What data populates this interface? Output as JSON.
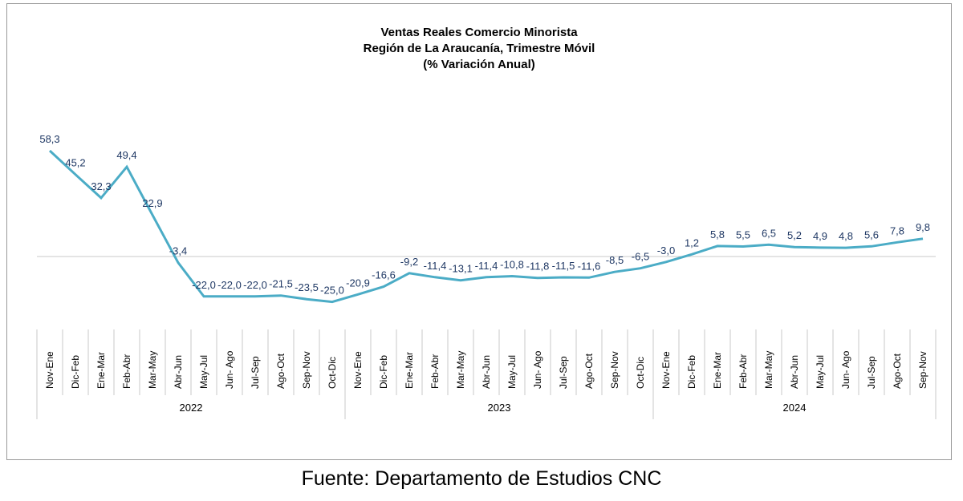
{
  "chart_data": {
    "type": "line",
    "title": [
      "Ventas Reales Comercio Minorista",
      "Región de La Araucanía, Trimestre Móvil",
      "(% Variación Anual)"
    ],
    "categories": [
      "Nov-Ene",
      "Dic-Feb",
      "Ene-Mar",
      "Feb-Abr",
      "Mar-May",
      "Abr-Jun",
      "May-Jul",
      "Jun- Ago",
      "Jul-Sep",
      "Ago-Oct",
      "Sep-Nov",
      "Oct-Dic",
      "Nov-Ene",
      "Dic-Feb",
      "Ene-Mar",
      "Feb-Abr",
      "Mar-May",
      "Abr-Jun",
      "May-Jul",
      "Jun- Ago",
      "Jul-Sep",
      "Ago-Oct",
      "Sep-Nov",
      "Oct-Dic",
      "Nov-Ene",
      "Dic-Feb",
      "Ene-Mar",
      "Feb-Abr",
      "Mar-May",
      "Abr-Jun",
      "May-Jul",
      "Jun- Ago",
      "Jul-Sep",
      "Ago-Oct",
      "Sep-Nov"
    ],
    "groups": [
      {
        "label": "2022",
        "count": 12
      },
      {
        "label": "2023",
        "count": 12
      },
      {
        "label": "2024",
        "count": 11
      }
    ],
    "series": [
      {
        "values": [
          58.3,
          45.2,
          32.3,
          49.4,
          22.9,
          -3.4,
          -22.0,
          -22.0,
          -22.0,
          -21.5,
          -23.5,
          -25.0,
          -20.9,
          -16.6,
          -9.2,
          -11.4,
          -13.1,
          -11.4,
          -10.8,
          -11.8,
          -11.5,
          -11.6,
          -8.5,
          -6.5,
          -3.0,
          1.2,
          5.8,
          5.5,
          6.5,
          5.2,
          4.9,
          4.8,
          5.6,
          7.8,
          9.8
        ],
        "labels": [
          "58,3",
          "45,2",
          "32,3",
          "49,4",
          "22,9",
          "-3,4",
          "-22,0",
          "-22,0",
          "-22,0",
          "-21,5",
          "-23,5",
          "-25,0",
          "-20,9",
          "-16,6",
          "-9,2",
          "-11,4",
          "-13,1",
          "-11,4",
          "-10,8",
          "-11,8",
          "-11,5",
          "-11,6",
          "-8,5",
          "-6,5",
          "-3,0",
          "1,2",
          "5,8",
          "5,5",
          "6,5",
          "5,2",
          "4,9",
          "4,8",
          "5,6",
          "7,8",
          "9,8"
        ]
      }
    ],
    "colors": {
      "line": "#4bacc6",
      "labels": "#1f3864",
      "axis": "#c8c8c8"
    },
    "ylim": [
      -30,
      65
    ],
    "grid": false,
    "legend": "none"
  },
  "source": "Fuente: Departamento de Estudios CNC"
}
